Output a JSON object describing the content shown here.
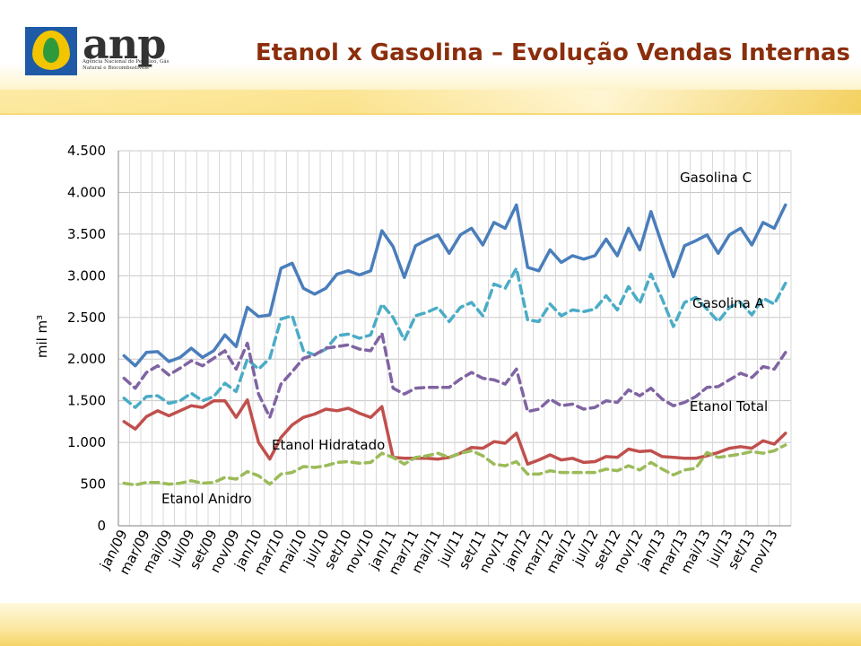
{
  "header": {
    "logo_name": "anp",
    "logo_subtitle": "Agência Nacional do Petróleo, Gás Natural e Biocombustíveis",
    "title": "Etanol x Gasolina – Evolução Vendas Internas"
  },
  "chart_data": {
    "type": "line",
    "title": "",
    "xlabel": "",
    "ylabel": "mil m³",
    "ylim": [
      0,
      4500
    ],
    "y_ticks": [
      0,
      500,
      1000,
      1500,
      2000,
      2500,
      3000,
      3500,
      4000,
      4500
    ],
    "y_tick_labels": [
      "0",
      "500",
      "1.000",
      "1.500",
      "2.000",
      "2.500",
      "3.000",
      "3.500",
      "4.000",
      "4.500"
    ],
    "grid": true,
    "legend": "inline labels",
    "categories": [
      "jan/09",
      "fev/09",
      "mar/09",
      "abr/09",
      "mai/09",
      "jun/09",
      "jul/09",
      "ago/09",
      "set/09",
      "out/09",
      "nov/09",
      "dez/09",
      "jan/10",
      "fev/10",
      "mar/10",
      "abr/10",
      "mai/10",
      "jun/10",
      "jul/10",
      "ago/10",
      "set/10",
      "out/10",
      "nov/10",
      "dez/10",
      "jan/11",
      "fev/11",
      "mar/11",
      "abr/11",
      "mai/11",
      "jun/11",
      "jul/11",
      "ago/11",
      "set/11",
      "out/11",
      "nov/11",
      "dez/11",
      "jan/12",
      "fev/12",
      "mar/12",
      "abr/12",
      "mai/12",
      "jun/12",
      "jul/12",
      "ago/12",
      "set/12",
      "out/12",
      "nov/12",
      "dez/12",
      "jan/13",
      "fev/13",
      "mar/13",
      "abr/13",
      "mai/13",
      "jun/13",
      "jul/13",
      "ago/13",
      "set/13",
      "out/13",
      "nov/13",
      "dez/13"
    ],
    "x_tick_labels": [
      "jan/09",
      "mar/09",
      "mai/09",
      "jul/09",
      "set/09",
      "nov/09",
      "jan/10",
      "mar/10",
      "mai/10",
      "jul/10",
      "set/10",
      "nov/10",
      "jan/11",
      "mar/11",
      "mai/11",
      "jul/11",
      "set/11",
      "nov/11",
      "jan/12",
      "mar/12",
      "mai/12",
      "jul/12",
      "set/12",
      "nov/12",
      "jan/13",
      "mar/13",
      "mai/13",
      "jul/13",
      "set/13",
      "nov/13"
    ],
    "series": [
      {
        "name": "Gasolina C",
        "color": "#4a7ebb",
        "dash": "solid",
        "values": [
          2040,
          1920,
          2080,
          2090,
          1970,
          2020,
          2130,
          2020,
          2100,
          2290,
          2150,
          2620,
          2510,
          2530,
          3090,
          3150,
          2850,
          2780,
          2850,
          3020,
          3060,
          3010,
          3060,
          3540,
          3350,
          2980,
          3360,
          3430,
          3490,
          3270,
          3490,
          3570,
          3370,
          3640,
          3570,
          3850,
          3100,
          3060,
          3310,
          3160,
          3240,
          3200,
          3240,
          3440,
          3240,
          3570,
          3310,
          3770,
          3370,
          2990,
          3360,
          3420,
          3490,
          3270,
          3490,
          3570,
          3370,
          3640,
          3570,
          3850
        ]
      },
      {
        "name": "Gasolina A",
        "color": "#4bacc6",
        "dash": "dash",
        "values": [
          1530,
          1420,
          1550,
          1560,
          1470,
          1500,
          1590,
          1500,
          1550,
          1710,
          1610,
          2000,
          1880,
          2010,
          2480,
          2520,
          2100,
          2050,
          2120,
          2280,
          2300,
          2250,
          2290,
          2660,
          2500,
          2230,
          2520,
          2560,
          2620,
          2450,
          2620,
          2680,
          2520,
          2900,
          2850,
          3090,
          2470,
          2450,
          2660,
          2520,
          2590,
          2570,
          2600,
          2760,
          2590,
          2870,
          2670,
          3020,
          2720,
          2390,
          2680,
          2740,
          2600,
          2450,
          2620,
          2680,
          2530,
          2730,
          2660,
          2910
        ]
      },
      {
        "name": "Etanol Total",
        "color": "#8064a2",
        "dash": "dash",
        "values": [
          1770,
          1650,
          1840,
          1920,
          1810,
          1890,
          1980,
          1920,
          2010,
          2100,
          1880,
          2190,
          1580,
          1300,
          1700,
          1850,
          2010,
          2050,
          2130,
          2150,
          2170,
          2120,
          2100,
          2310,
          1650,
          1580,
          1650,
          1660,
          1660,
          1660,
          1760,
          1840,
          1770,
          1750,
          1700,
          1880,
          1370,
          1400,
          1520,
          1440,
          1460,
          1400,
          1420,
          1500,
          1480,
          1630,
          1560,
          1650,
          1520,
          1440,
          1480,
          1550,
          1660,
          1670,
          1750,
          1830,
          1780,
          1910,
          1880,
          2080
        ]
      },
      {
        "name": "Etanol Hidratado",
        "color": "#c0504d",
        "dash": "solid",
        "values": [
          1250,
          1160,
          1310,
          1380,
          1320,
          1380,
          1440,
          1420,
          1500,
          1500,
          1300,
          1510,
          1000,
          800,
          1060,
          1210,
          1300,
          1340,
          1400,
          1380,
          1410,
          1350,
          1300,
          1430,
          820,
          810,
          810,
          810,
          800,
          820,
          870,
          940,
          930,
          1010,
          990,
          1110,
          740,
          790,
          850,
          790,
          810,
          760,
          770,
          830,
          820,
          920,
          890,
          900,
          830,
          820,
          810,
          810,
          840,
          880,
          930,
          950,
          930,
          1020,
          980,
          1110
        ]
      },
      {
        "name": "Etanol Anidro",
        "color": "#9bbb59",
        "dash": "dash",
        "values": [
          510,
          490,
          520,
          520,
          500,
          510,
          540,
          510,
          520,
          580,
          560,
          650,
          600,
          500,
          620,
          640,
          710,
          700,
          720,
          760,
          770,
          750,
          760,
          870,
          820,
          740,
          820,
          840,
          870,
          820,
          870,
          900,
          840,
          740,
          720,
          770,
          620,
          620,
          660,
          640,
          640,
          640,
          640,
          680,
          660,
          720,
          670,
          760,
          680,
          610,
          670,
          690,
          880,
          820,
          840,
          860,
          890,
          870,
          900,
          970
        ]
      }
    ],
    "annotations": [
      "Gasolina C",
      "Gasolina A",
      "Etanol Total",
      "Etanol Hidratado",
      "Etanol Anidro"
    ]
  }
}
